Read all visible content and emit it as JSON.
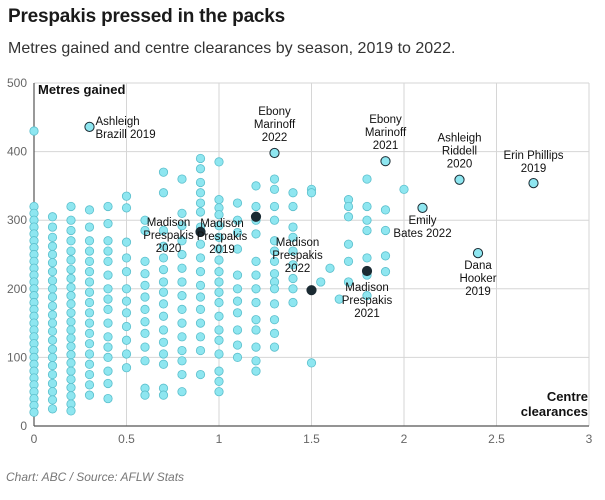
{
  "header": {
    "title": "Prespakis pressed in the packs",
    "subtitle": "Metres gained and centre clearances by season, 2019 to 2022."
  },
  "footer": {
    "source": "Chart: ABC / Source: AFLW Stats"
  },
  "colors": {
    "point_fill": "#8ee6f0",
    "point_stroke": "#5bbfcc",
    "highlight": "#1b2b33",
    "grid": "#d6d6d6"
  },
  "chart_data": {
    "type": "scatter",
    "title": "Prespakis pressed in the packs",
    "xlabel": "Centre clearances",
    "ylabel": "Metres gained",
    "xlim": [
      0,
      3
    ],
    "ylim": [
      0,
      500
    ],
    "x_ticks": [
      "0",
      "0.5",
      "1",
      "1.5",
      "2",
      "2.5",
      "3"
    ],
    "y_ticks": [
      "0",
      "100",
      "200",
      "300",
      "400",
      "500"
    ],
    "grid": true,
    "points": [
      [
        0,
        430
      ],
      [
        0,
        320
      ],
      [
        0,
        310
      ],
      [
        0,
        300
      ],
      [
        0,
        290
      ],
      [
        0,
        280
      ],
      [
        0,
        270
      ],
      [
        0,
        260
      ],
      [
        0,
        250
      ],
      [
        0,
        240
      ],
      [
        0,
        230
      ],
      [
        0,
        220
      ],
      [
        0,
        210
      ],
      [
        0,
        200
      ],
      [
        0,
        190
      ],
      [
        0,
        180
      ],
      [
        0,
        170
      ],
      [
        0,
        160
      ],
      [
        0,
        150
      ],
      [
        0,
        140
      ],
      [
        0,
        130
      ],
      [
        0,
        120
      ],
      [
        0,
        110
      ],
      [
        0,
        100
      ],
      [
        0,
        90
      ],
      [
        0,
        80
      ],
      [
        0,
        70
      ],
      [
        0,
        60
      ],
      [
        0,
        50
      ],
      [
        0,
        40
      ],
      [
        0,
        30
      ],
      [
        0,
        20
      ],
      [
        0.1,
        305
      ],
      [
        0.1,
        290
      ],
      [
        0.1,
        275
      ],
      [
        0.1,
        262
      ],
      [
        0.1,
        250
      ],
      [
        0.1,
        238
      ],
      [
        0.1,
        225
      ],
      [
        0.1,
        212
      ],
      [
        0.1,
        200
      ],
      [
        0.1,
        188
      ],
      [
        0.1,
        175
      ],
      [
        0.1,
        162
      ],
      [
        0.1,
        150
      ],
      [
        0.1,
        138
      ],
      [
        0.1,
        125
      ],
      [
        0.1,
        112
      ],
      [
        0.1,
        100
      ],
      [
        0.1,
        88
      ],
      [
        0.1,
        75
      ],
      [
        0.1,
        62
      ],
      [
        0.1,
        50
      ],
      [
        0.1,
        38
      ],
      [
        0.1,
        25
      ],
      [
        0.2,
        320
      ],
      [
        0.2,
        300
      ],
      [
        0.2,
        285
      ],
      [
        0.2,
        270
      ],
      [
        0.2,
        255
      ],
      [
        0.2,
        242
      ],
      [
        0.2,
        228
      ],
      [
        0.2,
        215
      ],
      [
        0.2,
        202
      ],
      [
        0.2,
        190
      ],
      [
        0.2,
        178
      ],
      [
        0.2,
        165
      ],
      [
        0.2,
        152
      ],
      [
        0.2,
        140
      ],
      [
        0.2,
        128
      ],
      [
        0.2,
        116
      ],
      [
        0.2,
        104
      ],
      [
        0.2,
        92
      ],
      [
        0.2,
        80
      ],
      [
        0.2,
        68
      ],
      [
        0.2,
        56
      ],
      [
        0.2,
        44
      ],
      [
        0.2,
        32
      ],
      [
        0.2,
        22
      ],
      [
        0.3,
        315
      ],
      [
        0.3,
        290
      ],
      [
        0.3,
        270
      ],
      [
        0.3,
        255
      ],
      [
        0.3,
        240
      ],
      [
        0.3,
        225
      ],
      [
        0.3,
        210
      ],
      [
        0.3,
        195
      ],
      [
        0.3,
        180
      ],
      [
        0.3,
        165
      ],
      [
        0.3,
        150
      ],
      [
        0.3,
        135
      ],
      [
        0.3,
        120
      ],
      [
        0.3,
        105
      ],
      [
        0.3,
        90
      ],
      [
        0.3,
        75
      ],
      [
        0.3,
        60
      ],
      [
        0.3,
        45
      ],
      [
        0.4,
        320
      ],
      [
        0.4,
        295
      ],
      [
        0.4,
        270
      ],
      [
        0.4,
        255
      ],
      [
        0.4,
        240
      ],
      [
        0.4,
        220
      ],
      [
        0.4,
        200
      ],
      [
        0.4,
        185
      ],
      [
        0.4,
        170
      ],
      [
        0.4,
        150
      ],
      [
        0.4,
        130
      ],
      [
        0.4,
        115
      ],
      [
        0.4,
        100
      ],
      [
        0.4,
        80
      ],
      [
        0.4,
        62
      ],
      [
        0.4,
        40
      ],
      [
        0.5,
        335
      ],
      [
        0.5,
        318
      ],
      [
        0.5,
        268
      ],
      [
        0.5,
        245
      ],
      [
        0.5,
        225
      ],
      [
        0.5,
        200
      ],
      [
        0.5,
        182
      ],
      [
        0.5,
        165
      ],
      [
        0.5,
        145
      ],
      [
        0.5,
        125
      ],
      [
        0.5,
        105
      ],
      [
        0.5,
        85
      ],
      [
        0.6,
        300
      ],
      [
        0.6,
        285
      ],
      [
        0.6,
        240
      ],
      [
        0.6,
        222
      ],
      [
        0.6,
        205
      ],
      [
        0.6,
        188
      ],
      [
        0.6,
        170
      ],
      [
        0.6,
        152
      ],
      [
        0.6,
        135
      ],
      [
        0.6,
        115
      ],
      [
        0.6,
        95
      ],
      [
        0.6,
        55
      ],
      [
        0.6,
        45
      ],
      [
        0.7,
        370
      ],
      [
        0.7,
        340
      ],
      [
        0.7,
        285
      ],
      [
        0.7,
        262
      ],
      [
        0.7,
        245
      ],
      [
        0.7,
        228
      ],
      [
        0.7,
        210
      ],
      [
        0.7,
        195
      ],
      [
        0.7,
        178
      ],
      [
        0.7,
        160
      ],
      [
        0.7,
        140
      ],
      [
        0.7,
        122
      ],
      [
        0.7,
        105
      ],
      [
        0.7,
        90
      ],
      [
        0.7,
        55
      ],
      [
        0.7,
        45
      ],
      [
        0.8,
        360
      ],
      [
        0.8,
        310
      ],
      [
        0.8,
        292
      ],
      [
        0.8,
        270
      ],
      [
        0.8,
        250
      ],
      [
        0.8,
        230
      ],
      [
        0.8,
        210
      ],
      [
        0.8,
        190
      ],
      [
        0.8,
        170
      ],
      [
        0.8,
        150
      ],
      [
        0.8,
        130
      ],
      [
        0.8,
        110
      ],
      [
        0.8,
        95
      ],
      [
        0.8,
        75
      ],
      [
        0.8,
        50
      ],
      [
        0.9,
        390
      ],
      [
        0.9,
        375
      ],
      [
        0.9,
        355
      ],
      [
        0.9,
        340
      ],
      [
        0.9,
        325
      ],
      [
        0.9,
        312
      ],
      [
        0.9,
        290
      ],
      [
        0.9,
        265
      ],
      [
        0.9,
        245
      ],
      [
        0.9,
        225
      ],
      [
        0.9,
        205
      ],
      [
        0.9,
        188
      ],
      [
        0.9,
        170
      ],
      [
        0.9,
        150
      ],
      [
        0.9,
        130
      ],
      [
        0.9,
        110
      ],
      [
        0.9,
        75
      ],
      [
        1.0,
        385
      ],
      [
        1.0,
        330
      ],
      [
        1.0,
        318
      ],
      [
        1.0,
        308
      ],
      [
        1.0,
        292
      ],
      [
        1.0,
        275
      ],
      [
        1.0,
        258
      ],
      [
        1.0,
        242
      ],
      [
        1.0,
        225
      ],
      [
        1.0,
        210
      ],
      [
        1.0,
        195
      ],
      [
        1.0,
        180
      ],
      [
        1.0,
        160
      ],
      [
        1.0,
        140
      ],
      [
        1.0,
        125
      ],
      [
        1.0,
        105
      ],
      [
        1.0,
        80
      ],
      [
        1.0,
        65
      ],
      [
        1.0,
        50
      ],
      [
        1.1,
        325
      ],
      [
        1.1,
        300
      ],
      [
        1.1,
        282
      ],
      [
        1.1,
        258
      ],
      [
        1.1,
        220
      ],
      [
        1.1,
        200
      ],
      [
        1.1,
        182
      ],
      [
        1.1,
        165
      ],
      [
        1.1,
        140
      ],
      [
        1.1,
        118
      ],
      [
        1.1,
        100
      ],
      [
        1.2,
        350
      ],
      [
        1.2,
        320
      ],
      [
        1.2,
        300
      ],
      [
        1.2,
        280
      ],
      [
        1.2,
        240
      ],
      [
        1.2,
        220
      ],
      [
        1.2,
        200
      ],
      [
        1.2,
        180
      ],
      [
        1.2,
        155
      ],
      [
        1.2,
        140
      ],
      [
        1.2,
        115
      ],
      [
        1.2,
        95
      ],
      [
        1.2,
        80
      ],
      [
        1.3,
        360
      ],
      [
        1.3,
        345
      ],
      [
        1.3,
        320
      ],
      [
        1.3,
        300
      ],
      [
        1.3,
        270
      ],
      [
        1.3,
        255
      ],
      [
        1.3,
        240
      ],
      [
        1.3,
        222
      ],
      [
        1.3,
        210
      ],
      [
        1.3,
        200
      ],
      [
        1.3,
        178
      ],
      [
        1.3,
        155
      ],
      [
        1.3,
        135
      ],
      [
        1.3,
        115
      ],
      [
        1.4,
        340
      ],
      [
        1.4,
        320
      ],
      [
        1.4,
        290
      ],
      [
        1.4,
        275
      ],
      [
        1.4,
        255
      ],
      [
        1.4,
        235
      ],
      [
        1.4,
        215
      ],
      [
        1.4,
        200
      ],
      [
        1.4,
        180
      ],
      [
        1.5,
        345
      ],
      [
        1.5,
        340
      ],
      [
        1.5,
        92
      ],
      [
        1.55,
        210
      ],
      [
        1.6,
        230
      ],
      [
        1.65,
        185
      ],
      [
        1.7,
        330
      ],
      [
        1.7,
        320
      ],
      [
        1.7,
        305
      ],
      [
        1.7,
        265
      ],
      [
        1.7,
        240
      ],
      [
        1.7,
        210
      ],
      [
        1.8,
        360
      ],
      [
        1.8,
        320
      ],
      [
        1.8,
        300
      ],
      [
        1.8,
        285
      ],
      [
        1.8,
        245
      ],
      [
        1.8,
        220
      ],
      [
        1.8,
        190
      ],
      [
        1.9,
        315
      ],
      [
        1.9,
        285
      ],
      [
        1.9,
        248
      ],
      [
        1.9,
        225
      ],
      [
        2.0,
        345
      ]
    ],
    "labelled_points": [
      {
        "name": "Ashleigh Brazill 2019",
        "lines": [
          "Ashleigh",
          "Brazill 2019"
        ],
        "x": 0.3,
        "y": 436,
        "highlight": false
      },
      {
        "name": "Ebony Marinoff 2022",
        "lines": [
          "Ebony",
          "Marinoff",
          "2022"
        ],
        "x": 1.3,
        "y": 398,
        "highlight": false
      },
      {
        "name": "Ebony Marinoff 2021",
        "lines": [
          "Ebony",
          "Marinoff",
          "2021"
        ],
        "x": 1.9,
        "y": 386,
        "highlight": false
      },
      {
        "name": "Ashleigh Riddell 2020",
        "lines": [
          "Ashleigh",
          "Riddell",
          "2020"
        ],
        "x": 2.3,
        "y": 359,
        "highlight": false
      },
      {
        "name": "Erin Phillips 2019",
        "lines": [
          "Erin Phillips",
          "2019"
        ],
        "x": 2.7,
        "y": 354,
        "highlight": false
      },
      {
        "name": "Emily Bates 2022",
        "lines": [
          "Emily",
          "Bates 2022"
        ],
        "x": 2.1,
        "y": 318,
        "highlight": false
      },
      {
        "name": "Dana Hooker 2019",
        "lines": [
          "Dana",
          "Hooker",
          "2019"
        ],
        "x": 2.4,
        "y": 252,
        "highlight": false
      },
      {
        "name": "Madison Prespakis 2019",
        "lines": [
          "Madison",
          "Prespakis",
          "2019"
        ],
        "x": 1.2,
        "y": 305,
        "highlight": true
      },
      {
        "name": "Madison Prespakis 2020",
        "lines": [
          "Madison",
          "Prespakis",
          "2020"
        ],
        "x": 0.9,
        "y": 283,
        "highlight": true
      },
      {
        "name": "Madison Prespakis 2022",
        "lines": [
          "Madison",
          "Prespakis",
          "2022"
        ],
        "x": 1.5,
        "y": 198,
        "highlight": true
      },
      {
        "name": "Madison Prespakis 2021",
        "lines": [
          "Madison",
          "Prespakis",
          "2021"
        ],
        "x": 1.8,
        "y": 226,
        "highlight": true
      }
    ]
  }
}
